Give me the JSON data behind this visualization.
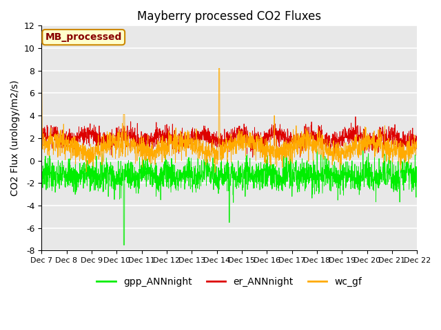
{
  "title": "Mayberry processed CO2 Fluxes",
  "ylabel": "CO2 Flux (urology/m2/s)",
  "ylim": [
    -8,
    12
  ],
  "yticks": [
    -8,
    -6,
    -4,
    -2,
    0,
    2,
    4,
    6,
    8,
    10,
    12
  ],
  "xlabel_dates": [
    "Dec 7",
    "Dec 8",
    "Dec 9",
    "Dec 10",
    "Dec 11",
    "Dec 12",
    "Dec 13",
    "Dec 14",
    "Dec 15",
    "Dec 16",
    "Dec 17",
    "Dec 18",
    "Dec 19",
    "Dec 20",
    "Dec 21",
    "Dec 22"
  ],
  "legend_label": "MB_processed",
  "line_labels": [
    "gpp_ANNnight",
    "er_ANNnight",
    "wc_gf"
  ],
  "line_colors": [
    "#00ee00",
    "#dd0000",
    "#ffaa00"
  ],
  "background_color": "#e8e8e8",
  "title_fontsize": 12,
  "axis_fontsize": 10,
  "tick_fontsize": 9,
  "legend_box_color": "#ffffcc",
  "legend_box_edge": "#cc8800",
  "legend_text_color": "#880000",
  "n_points": 2160,
  "seed": 7
}
